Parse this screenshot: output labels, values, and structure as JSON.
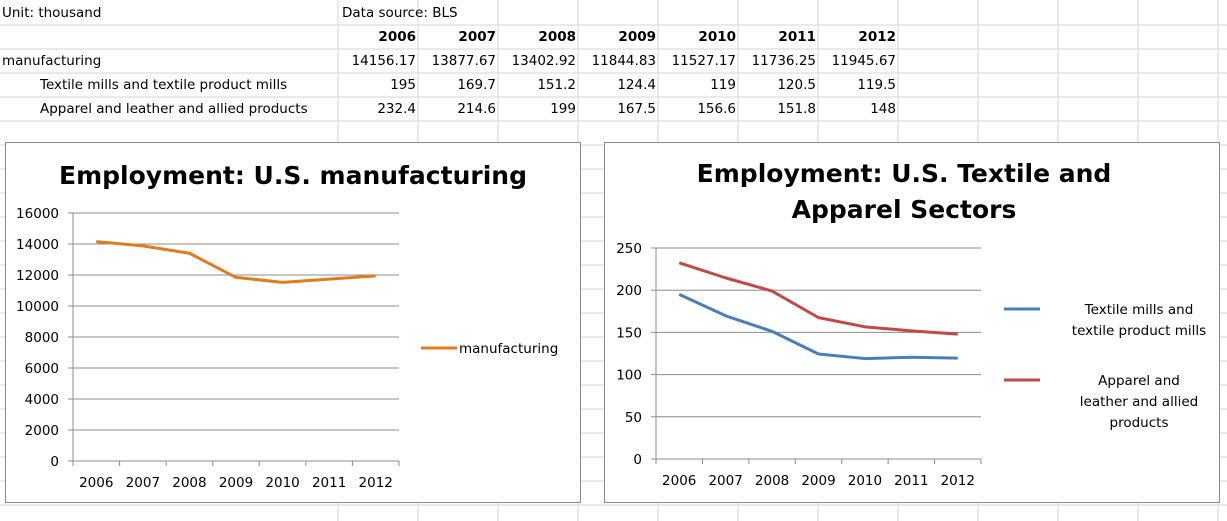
{
  "sheet": {
    "unit_note": "Unit: thousand",
    "source_note": "Data source: BLS",
    "years": [
      "2006",
      "2007",
      "2008",
      "2009",
      "2010",
      "2011",
      "2012"
    ],
    "rows": [
      {
        "label": "manufacturing",
        "indent": false,
        "values": [
          "14156.17",
          "13877.67",
          "13402.92",
          "11844.83",
          "11527.17",
          "11736.25",
          "11945.67"
        ]
      },
      {
        "label": "Textile mills and textile product mills",
        "indent": true,
        "values": [
          "195",
          "169.7",
          "151.2",
          "124.4",
          "119",
          "120.5",
          "119.5"
        ]
      },
      {
        "label": "Apparel and leather and allied products",
        "indent": true,
        "values": [
          "232.4",
          "214.6",
          "199",
          "167.5",
          "156.6",
          "151.8",
          "148"
        ]
      }
    ]
  },
  "chart_data": [
    {
      "type": "line",
      "title": "Employment: U.S. manufacturing",
      "categories": [
        "2006",
        "2007",
        "2008",
        "2009",
        "2010",
        "2011",
        "2012"
      ],
      "ylim": [
        0,
        16000
      ],
      "yticks": [
        "0",
        "2000",
        "4000",
        "6000",
        "8000",
        "10000",
        "12000",
        "14000",
        "16000"
      ],
      "grid": true,
      "legend": "right",
      "series": [
        {
          "name": "manufacturing",
          "color": "#e07b1f",
          "values": [
            14156.17,
            13877.67,
            13402.92,
            11844.83,
            11527.17,
            11736.25,
            11945.67
          ]
        }
      ]
    },
    {
      "type": "line",
      "title": "Employment: U.S. Textile and Apparel Sectors",
      "title_lines": [
        "Employment: U.S. Textile and",
        "Apparel Sectors"
      ],
      "categories": [
        "2006",
        "2007",
        "2008",
        "2009",
        "2010",
        "2011",
        "2012"
      ],
      "ylim": [
        0,
        250
      ],
      "yticks": [
        "0",
        "50",
        "100",
        "150",
        "200",
        "250"
      ],
      "grid": true,
      "legend": "right",
      "series": [
        {
          "name": "Textile mills and textile product mills",
          "legend_lines": [
            "Textile mills and",
            "textile product mills"
          ],
          "color": "#4a7ebb",
          "values": [
            195,
            169.7,
            151.2,
            124.4,
            119,
            120.5,
            119.5
          ]
        },
        {
          "name": "Apparel and leather and allied products",
          "legend_lines": [
            "Apparel and",
            "leather and allied",
            "products"
          ],
          "color": "#be4b48",
          "values": [
            232.4,
            214.6,
            199,
            167.5,
            156.6,
            151.8,
            148
          ]
        }
      ]
    }
  ]
}
